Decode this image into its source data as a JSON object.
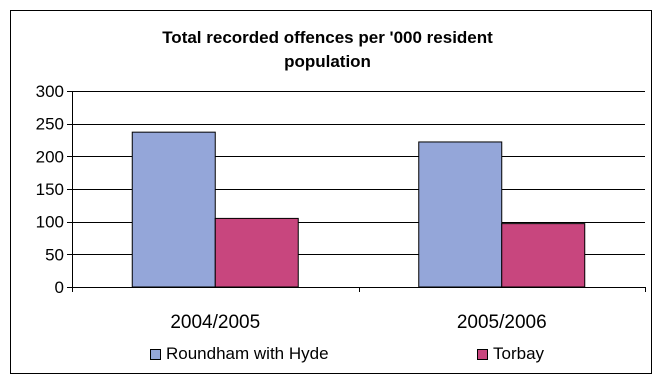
{
  "chart_data": {
    "type": "bar",
    "title_lines": [
      "Total recorded offences per '000 resident",
      "population"
    ],
    "categories": [
      "2004/2005",
      "2005/2006"
    ],
    "series": [
      {
        "name": "Roundham with Hyde",
        "values": [
          237,
          222
        ],
        "color": "#94a6d9"
      },
      {
        "name": "Torbay",
        "values": [
          105,
          97
        ],
        "color": "#c8467e"
      }
    ],
    "ylim": [
      0,
      300
    ],
    "yticks": [
      "0",
      "50",
      "100",
      "150",
      "200",
      "250",
      "300"
    ],
    "grid": true,
    "legend": "bottom"
  }
}
